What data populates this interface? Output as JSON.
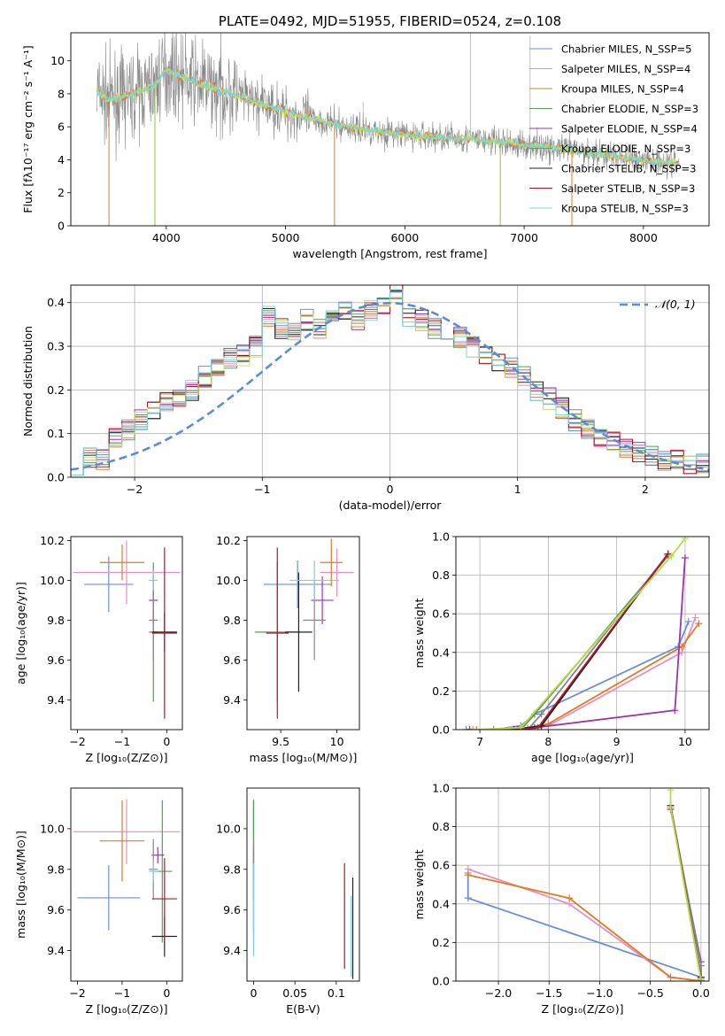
{
  "colors": [
    "#6a8fd8",
    "#e78fc0",
    "#e07a24",
    "#5a9a5a",
    "#9b35b0",
    "#888888",
    "#222222",
    "#b2182b",
    "#7fd0dc"
  ],
  "chart_data": [
    {
      "id": "spectrum",
      "type": "line",
      "title": "PLATE=0492, MJD=51955, FIBERID=0524, z=0.108",
      "xlabel": "wavelength [Angstrom, rest frame]",
      "ylabel": "Flux [fλ10⁻¹⁷ erg cm⁻² s⁻¹ A⁻¹]",
      "xlim": [
        3200,
        8550
      ],
      "ylim": [
        0,
        11.7
      ],
      "xticks": [
        4000,
        5000,
        6000,
        7000,
        8000
      ],
      "yticks": [
        0,
        2,
        4,
        6,
        8,
        10
      ],
      "legend_position": "top-right",
      "legend": [
        "Chabrier MILES, N_SSP=5",
        "Salpeter MILES, N_SSP=4",
        "Kroupa MILES, N_SSP=4",
        "Chabrier ELODIE, N_SSP=3",
        "Salpeter ELODIE, N_SSP=4",
        "Kroupa ELODIE, N_SSP=3",
        "Chabrier STELIB, N_SSP=3",
        "Salpeter STELIB, N_SSP=3",
        "Kroupa STELIB, N_SSP=3"
      ],
      "model_continuum": {
        "x": [
          3420,
          3500,
          3700,
          3900,
          4000,
          4200,
          4500,
          5000,
          5500,
          6000,
          6500,
          7000,
          7500,
          8000,
          8300
        ],
        "y": [
          8.2,
          7.6,
          7.9,
          8.5,
          9.5,
          8.8,
          8.1,
          6.9,
          6.0,
          5.5,
          5.3,
          4.9,
          4.5,
          4.0,
          3.8
        ]
      }
    },
    {
      "id": "residuals",
      "type": "line",
      "xlabel": "(data-model)/error",
      "ylabel": "Normed distribution",
      "xlim": [
        -2.5,
        2.5
      ],
      "ylim": [
        0,
        0.44
      ],
      "xticks": [
        -2,
        -1,
        0,
        1,
        2
      ],
      "yticks": [
        0.0,
        0.1,
        0.2,
        0.3,
        0.4
      ],
      "grid": true,
      "legend": [
        "𝒩(0, 1)"
      ],
      "legend_position": "top-right",
      "bin_centers": [
        -2.45,
        -2.35,
        -2.25,
        -2.15,
        -2.05,
        -1.95,
        -1.85,
        -1.75,
        -1.65,
        -1.55,
        -1.45,
        -1.35,
        -1.25,
        -1.15,
        -1.05,
        -0.95,
        -0.85,
        -0.75,
        -0.65,
        -0.55,
        -0.45,
        -0.35,
        -0.25,
        -0.15,
        -0.05,
        0.05,
        0.15,
        0.25,
        0.35,
        0.45,
        0.55,
        0.65,
        0.75,
        0.85,
        0.95,
        1.05,
        1.15,
        1.25,
        1.35,
        1.45,
        1.55,
        1.65,
        1.75,
        1.85,
        1.95,
        2.05,
        2.15,
        2.25,
        2.35,
        2.45
      ],
      "hist_values": [
        0.03,
        0.045,
        0.04,
        0.09,
        0.11,
        0.13,
        0.15,
        0.17,
        0.18,
        0.2,
        0.23,
        0.25,
        0.27,
        0.28,
        0.3,
        0.37,
        0.34,
        0.33,
        0.36,
        0.34,
        0.37,
        0.38,
        0.36,
        0.38,
        0.39,
        0.42,
        0.37,
        0.36,
        0.34,
        0.33,
        0.32,
        0.3,
        0.28,
        0.26,
        0.25,
        0.23,
        0.2,
        0.18,
        0.16,
        0.13,
        0.11,
        0.09,
        0.08,
        0.07,
        0.06,
        0.05,
        0.04,
        0.04,
        0.03,
        0.03
      ]
    },
    {
      "id": "age_vs_Z",
      "type": "scatter",
      "xlabel": "Z [log₁₀(Z/Z⊙)]",
      "ylabel": "age  [log₁₀(age/yr)]",
      "xlim": [
        -2.15,
        0.35
      ],
      "ylim": [
        9.25,
        10.22
      ],
      "xticks": [
        -2,
        -1,
        0
      ],
      "yticks": [
        9.4,
        9.6,
        9.8,
        10.0,
        10.2
      ],
      "points": [
        {
          "x": -1.3,
          "y": 9.98,
          "xerr": 0.55,
          "yerr": 0.14,
          "c": 0
        },
        {
          "x": -0.9,
          "y": 10.04,
          "xerr": 1.2,
          "yerr": 0.16,
          "c": 1
        },
        {
          "x": -1.0,
          "y": 10.09,
          "xerr": 0.5,
          "yerr": 0.09,
          "c": 2
        },
        {
          "x": -0.3,
          "y": 9.74,
          "xerr": 0.1,
          "yerr": 0.35,
          "c": 3
        },
        {
          "x": -0.3,
          "y": 9.9,
          "xerr": 0.1,
          "yerr": 0.12,
          "c": 4
        },
        {
          "x": -0.3,
          "y": 9.8,
          "xerr": 0.1,
          "yerr": 0.2,
          "c": 5
        },
        {
          "x": -0.05,
          "y": 9.74,
          "xerr": 0.28,
          "yerr": 0.1,
          "c": 6
        },
        {
          "x": -0.05,
          "y": 9.735,
          "xerr": 0.28,
          "yerr": 0.43,
          "c": 7
        },
        {
          "x": -0.3,
          "y": 10.0,
          "xerr": 0.1,
          "yerr": 0.05,
          "c": 8
        }
      ]
    },
    {
      "id": "age_vs_mass",
      "type": "scatter",
      "xlabel": "mass [log₁₀(M/M⊙)]",
      "ylabel": "",
      "xlim": [
        9.2,
        10.2
      ],
      "ylim": [
        9.25,
        10.22
      ],
      "xticks": [
        9.5,
        10.0
      ],
      "yticks": [
        9.4,
        9.6,
        9.8,
        10.0,
        10.2
      ],
      "points": [
        {
          "x": 9.65,
          "y": 9.98,
          "xerr": 0.3,
          "yerr": 0.12,
          "c": 0
        },
        {
          "x": 10.0,
          "y": 10.04,
          "xerr": 0.15,
          "yerr": 0.12,
          "c": 1
        },
        {
          "x": 9.95,
          "y": 10.09,
          "xerr": 0.1,
          "yerr": 0.12,
          "c": 2
        },
        {
          "x": 9.47,
          "y": 9.74,
          "xerr": 0.2,
          "yerr": 0.35,
          "c": 3
        },
        {
          "x": 9.87,
          "y": 9.9,
          "xerr": 0.1,
          "yerr": 0.12,
          "c": 4
        },
        {
          "x": 9.8,
          "y": 9.8,
          "xerr": 0.1,
          "yerr": 0.2,
          "c": 5
        },
        {
          "x": 9.66,
          "y": 9.74,
          "xerr": 0.12,
          "yerr": 0.3,
          "c": 6
        },
        {
          "x": 9.47,
          "y": 9.735,
          "xerr": 0.1,
          "yerr": 0.43,
          "c": 7
        },
        {
          "x": 9.8,
          "y": 10.0,
          "xerr": 0.22,
          "yerr": 0.1,
          "c": 8
        }
      ]
    },
    {
      "id": "massweight_vs_age",
      "type": "line",
      "xlabel": "age  [log₁₀(age/yr)]",
      "ylabel": "mass weight",
      "xlim": [
        6.65,
        10.35
      ],
      "ylim": [
        0,
        1.0
      ],
      "xticks": [
        7,
        8,
        9,
        10
      ],
      "yticks": [
        0.0,
        0.2,
        0.4,
        0.6,
        0.8,
        1.0
      ],
      "grid": true,
      "series": [
        {
          "c": 0,
          "x": [
            6.9,
            7.2,
            7.6,
            7.8,
            9.9,
            10.05
          ],
          "y": [
            0.0,
            0.0,
            0.02,
            0.08,
            0.43,
            0.56
          ]
        },
        {
          "c": 1,
          "x": [
            6.9,
            7.5,
            7.7,
            8.0,
            9.95,
            10.15
          ],
          "y": [
            0.0,
            0.0,
            0.01,
            0.02,
            0.4,
            0.58
          ]
        },
        {
          "c": 2,
          "x": [
            6.95,
            7.5,
            7.8,
            8.0,
            9.95,
            10.2
          ],
          "y": [
            0.0,
            0.0,
            0.01,
            0.03,
            0.43,
            0.55
          ]
        },
        {
          "c": 3,
          "x": [
            6.8,
            7.6,
            7.8,
            9.75
          ],
          "y": [
            0.0,
            0.0,
            0.08,
            0.9
          ]
        },
        {
          "c": 4,
          "x": [
            6.85,
            7.6,
            7.8,
            9.85,
            10.0
          ],
          "y": [
            0.0,
            0.0,
            0.01,
            0.1,
            0.89
          ]
        },
        {
          "c": 5,
          "x": [
            6.9,
            7.7,
            7.9,
            9.75
          ],
          "y": [
            0.0,
            0.0,
            0.08,
            0.91
          ]
        },
        {
          "c": 6,
          "x": [
            7.5,
            7.9,
            9.75
          ],
          "y": [
            0.0,
            0.02,
            0.91
          ]
        },
        {
          "c": 7,
          "x": [
            7.55,
            7.85,
            9.75
          ],
          "y": [
            0.0,
            0.01,
            0.91
          ]
        },
        {
          "c": 8,
          "x": [
            6.9,
            7.6,
            9.8,
            10.0
          ],
          "y": [
            0.0,
            0.01,
            0.9,
            0.99
          ]
        }
      ]
    },
    {
      "id": "mass_vs_Z",
      "type": "scatter",
      "xlabel": "Z [log₁₀(Z/Z⊙)]",
      "ylabel": "mass [log₁₀(M/M⊙)]",
      "xlim": [
        -2.15,
        0.35
      ],
      "ylim": [
        9.25,
        10.2
      ],
      "xticks": [
        -2,
        -1,
        0
      ],
      "yticks": [
        9.4,
        9.6,
        9.8,
        10.0
      ],
      "points": [
        {
          "x": -1.3,
          "y": 9.66,
          "xerr": 0.7,
          "yerr": 0.16,
          "c": 0
        },
        {
          "x": -0.9,
          "y": 9.985,
          "xerr": 1.2,
          "yerr": 0.16,
          "c": 1
        },
        {
          "x": -1.0,
          "y": 9.94,
          "xerr": 0.5,
          "yerr": 0.2,
          "c": 2
        },
        {
          "x": -0.1,
          "y": 9.79,
          "xerr": 0.22,
          "yerr": 0.35,
          "c": 3
        },
        {
          "x": -0.2,
          "y": 9.87,
          "xerr": 0.14,
          "yerr": 0.04,
          "c": 4
        },
        {
          "x": -0.3,
          "y": 9.8,
          "xerr": 0.1,
          "yerr": 0.15,
          "c": 5
        },
        {
          "x": -0.05,
          "y": 9.47,
          "xerr": 0.28,
          "yerr": 0.1,
          "c": 6
        },
        {
          "x": -0.05,
          "y": 9.655,
          "xerr": 0.28,
          "yerr": 0.2,
          "c": 7
        },
        {
          "x": -0.3,
          "y": 9.79,
          "xerr": 0.1,
          "yerr": 0.05,
          "c": 8
        }
      ]
    },
    {
      "id": "mass_vs_EBV",
      "type": "scatter",
      "xlabel": "E(B-V)",
      "ylabel": "",
      "xlim": [
        -0.008,
        0.128
      ],
      "ylim": [
        9.25,
        10.2
      ],
      "xticks": [
        0.0,
        0.05,
        0.1
      ],
      "yticks": [
        9.4,
        9.6,
        9.8,
        10.0
      ],
      "points": [
        {
          "x": 0.0,
          "y": 9.66,
          "yerr": 0.16,
          "c": 0
        },
        {
          "x": 0.0,
          "y": 9.985,
          "yerr": 0.16,
          "c": 1
        },
        {
          "x": 0.0,
          "y": 9.94,
          "yerr": 0.2,
          "c": 2
        },
        {
          "x": 0.0,
          "y": 9.79,
          "yerr": 0.35,
          "c": 3
        },
        {
          "x": 0.0,
          "y": 9.87,
          "yerr": 0.04,
          "c": 4
        },
        {
          "x": 0.0,
          "y": 9.8,
          "yerr": 0.15,
          "c": 5
        },
        {
          "x": 0.12,
          "y": 9.51,
          "yerr": 0.25,
          "c": 6
        },
        {
          "x": 0.11,
          "y": 9.57,
          "yerr": 0.26,
          "c": 7
        },
        {
          "x": 0.118,
          "y": 9.47,
          "yerr": 0.2,
          "c": 8
        },
        {
          "x": 0.0,
          "y": 9.6,
          "yerr": 0.23,
          "c": 8
        }
      ]
    },
    {
      "id": "massweight_vs_Z",
      "type": "line",
      "xlabel": "Z [log₁₀(Z/Z⊙)]",
      "ylabel": "mass weight",
      "xlim": [
        -2.42,
        0.08
      ],
      "ylim": [
        0,
        1.0
      ],
      "xticks": [
        -2.0,
        -1.5,
        -1.0,
        -0.5,
        0.0
      ],
      "yticks": [
        0.0,
        0.2,
        0.4,
        0.6,
        0.8,
        1.0
      ],
      "grid": true,
      "series": [
        {
          "c": 0,
          "x": [
            -2.3,
            -2.3,
            0.0,
            0.0
          ],
          "y": [
            0.56,
            0.43,
            0.02,
            0.0
          ]
        },
        {
          "c": 1,
          "x": [
            -2.3,
            -1.3,
            -0.3,
            0.0
          ],
          "y": [
            0.58,
            0.4,
            0.02,
            0.0
          ]
        },
        {
          "c": 2,
          "x": [
            -2.3,
            -1.3,
            -0.3,
            0.0
          ],
          "y": [
            0.55,
            0.43,
            0.02,
            0.0
          ]
        },
        {
          "c": 3,
          "x": [
            -0.3,
            0.0,
            0.0
          ],
          "y": [
            0.9,
            0.08,
            0.0
          ]
        },
        {
          "c": 4,
          "x": [
            -0.3,
            0.0,
            0.0
          ],
          "y": [
            0.89,
            0.1,
            0.01
          ]
        },
        {
          "c": 5,
          "x": [
            -0.3,
            0.0,
            0.0
          ],
          "y": [
            0.91,
            0.08,
            0.0
          ]
        },
        {
          "c": 6,
          "x": [
            -0.3,
            0.0
          ],
          "y": [
            0.91,
            0.02
          ]
        },
        {
          "c": 7,
          "x": [
            -0.3,
            0.0
          ],
          "y": [
            0.91,
            0.01
          ]
        },
        {
          "c": 8,
          "x": [
            -0.3,
            -0.3,
            0.0
          ],
          "y": [
            0.99,
            0.9,
            0.01
          ]
        }
      ]
    }
  ]
}
